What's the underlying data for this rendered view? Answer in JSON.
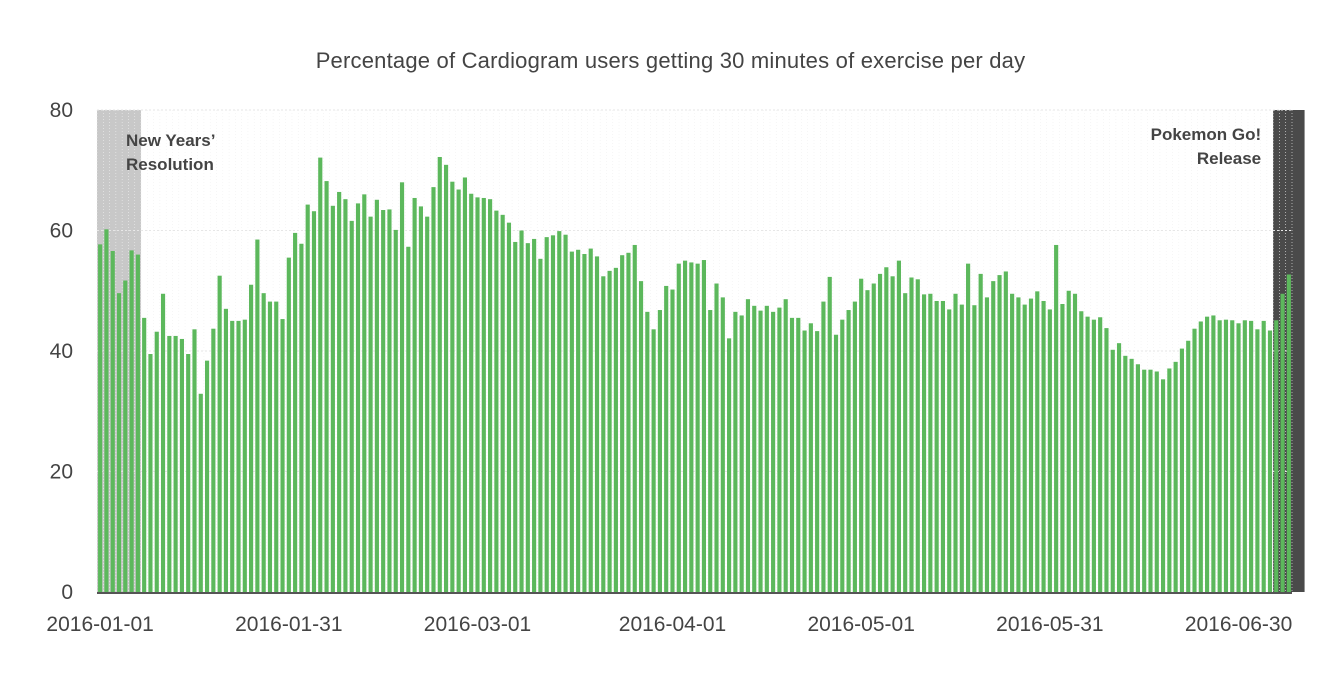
{
  "chart_data": {
    "type": "bar",
    "title": "Percentage of Cardiogram users getting 30 minutes of exercise per day",
    "xlabel": "",
    "ylabel": "",
    "ylim": [
      0,
      80
    ],
    "yticks": [
      0,
      20,
      40,
      60,
      80
    ],
    "start_date": "2016-01-01",
    "xtick_labels": [
      {
        "day_index": 0,
        "label": "2016-01-01"
      },
      {
        "day_index": 30,
        "label": "2016-01-31"
      },
      {
        "day_index": 60,
        "label": "2016-03-01"
      },
      {
        "day_index": 91,
        "label": "2016-04-01"
      },
      {
        "day_index": 121,
        "label": "2016-05-01"
      },
      {
        "day_index": 151,
        "label": "2016-05-31"
      },
      {
        "day_index": 181,
        "label": "2016-06-30"
      }
    ],
    "bar_color": "#5cb85c",
    "values": [
      57.7,
      60.2,
      56.6,
      49.6,
      51.7,
      56.7,
      56.0,
      45.5,
      39.5,
      43.2,
      49.5,
      42.5,
      42.5,
      42.0,
      39.5,
      43.6,
      32.9,
      38.4,
      43.7,
      52.5,
      47.0,
      45.0,
      45.0,
      45.2,
      51.0,
      58.5,
      49.6,
      48.2,
      48.2,
      45.3,
      55.5,
      59.6,
      57.8,
      64.3,
      63.2,
      72.1,
      68.2,
      64.1,
      66.4,
      65.2,
      61.6,
      64.5,
      66.0,
      62.3,
      65.1,
      63.4,
      63.5,
      60.1,
      68.0,
      57.3,
      65.4,
      64.0,
      62.3,
      67.2,
      72.2,
      70.9,
      68.1,
      66.8,
      68.8,
      66.1,
      65.5,
      65.4,
      65.2,
      63.3,
      62.6,
      61.3,
      58.1,
      60.0,
      57.9,
      58.6,
      55.3,
      58.9,
      59.2,
      59.9,
      59.3,
      56.5,
      56.8,
      56.1,
      57.0,
      55.7,
      52.4,
      53.3,
      53.8,
      55.9,
      56.3,
      57.6,
      51.6,
      46.5,
      43.6,
      46.8,
      50.8,
      50.2,
      54.5,
      55.0,
      54.7,
      54.5,
      55.1,
      46.8,
      51.2,
      48.9,
      42.1,
      46.5,
      45.9,
      48.6,
      47.5,
      46.7,
      47.5,
      46.5,
      47.2,
      48.6,
      45.5,
      45.5,
      43.4,
      44.6,
      43.3,
      48.2,
      52.3,
      42.7,
      45.2,
      46.8,
      48.2,
      52.0,
      50.1,
      51.2,
      52.8,
      53.9,
      52.4,
      55.0,
      49.6,
      52.2,
      51.9,
      49.4,
      49.5,
      48.3,
      48.3,
      46.9,
      49.5,
      47.7,
      54.5,
      47.6,
      52.8,
      48.9,
      51.6,
      52.6,
      53.2,
      49.5,
      48.9,
      47.7,
      48.7,
      49.9,
      48.3,
      46.9,
      57.6,
      47.8,
      50.0,
      49.5,
      46.6,
      45.7,
      45.2,
      45.6,
      43.8,
      40.2,
      41.3,
      39.2,
      38.7,
      37.8,
      36.9,
      36.9,
      36.6,
      35.3,
      37.1,
      38.2,
      40.4,
      41.7,
      43.7,
      44.9,
      45.7,
      45.9,
      45.1,
      45.2,
      45.1,
      44.6,
      45.1,
      45.0,
      43.6,
      45.0,
      43.4,
      45.1,
      49.5,
      52.7
    ],
    "annotations": [
      {
        "label_lines": [
          "New Years’",
          "Resolution"
        ],
        "start_index": 0,
        "end_index": 6,
        "shade_color": "#c8c8c8",
        "text_color": "#444444",
        "align": "left"
      },
      {
        "label_lines": [
          "Pokemon Go!",
          "Release"
        ],
        "start_index": 187,
        "end_index": 191,
        "shade_color": "#4a4a4a",
        "text_color": "#444444",
        "align": "right"
      }
    ]
  }
}
